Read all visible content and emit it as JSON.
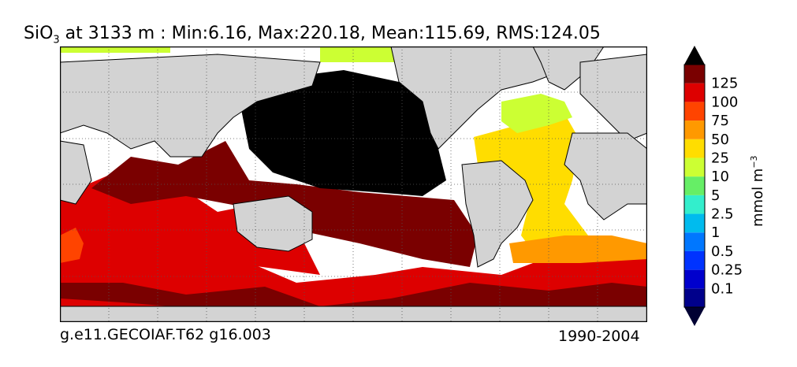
{
  "title": {
    "species": "SiO",
    "subscript": "3",
    "rest": " at 3133 m : Min:6.16, Max:220.18, Mean:115.69, RMS:124.05"
  },
  "footer": {
    "left": "g.e11.GECOIAF.T62 g16.003",
    "right": "1990-2004"
  },
  "colorbar": {
    "unit_base": "mmol m",
    "unit_exp": "−3",
    "ticks": [
      "0.1",
      "0.25",
      "0.5",
      "1",
      "2.5",
      "5",
      "10",
      "25",
      "50",
      "75",
      "100",
      "125"
    ],
    "colors": [
      "#00008b",
      "#0000cd",
      "#0033ff",
      "#0077ff",
      "#00bbee",
      "#33eecc",
      "#66ee66",
      "#ccff33",
      "#ffdd00",
      "#ff9900",
      "#ff4400",
      "#dd0000",
      "#7a0000"
    ],
    "under_color": "#000033",
    "over_color": "#000000"
  },
  "map": {
    "projection": "cylindrical",
    "land_color": "#d3d3d3",
    "missing_color": "#ffffff",
    "gridlines": "dotted"
  }
}
